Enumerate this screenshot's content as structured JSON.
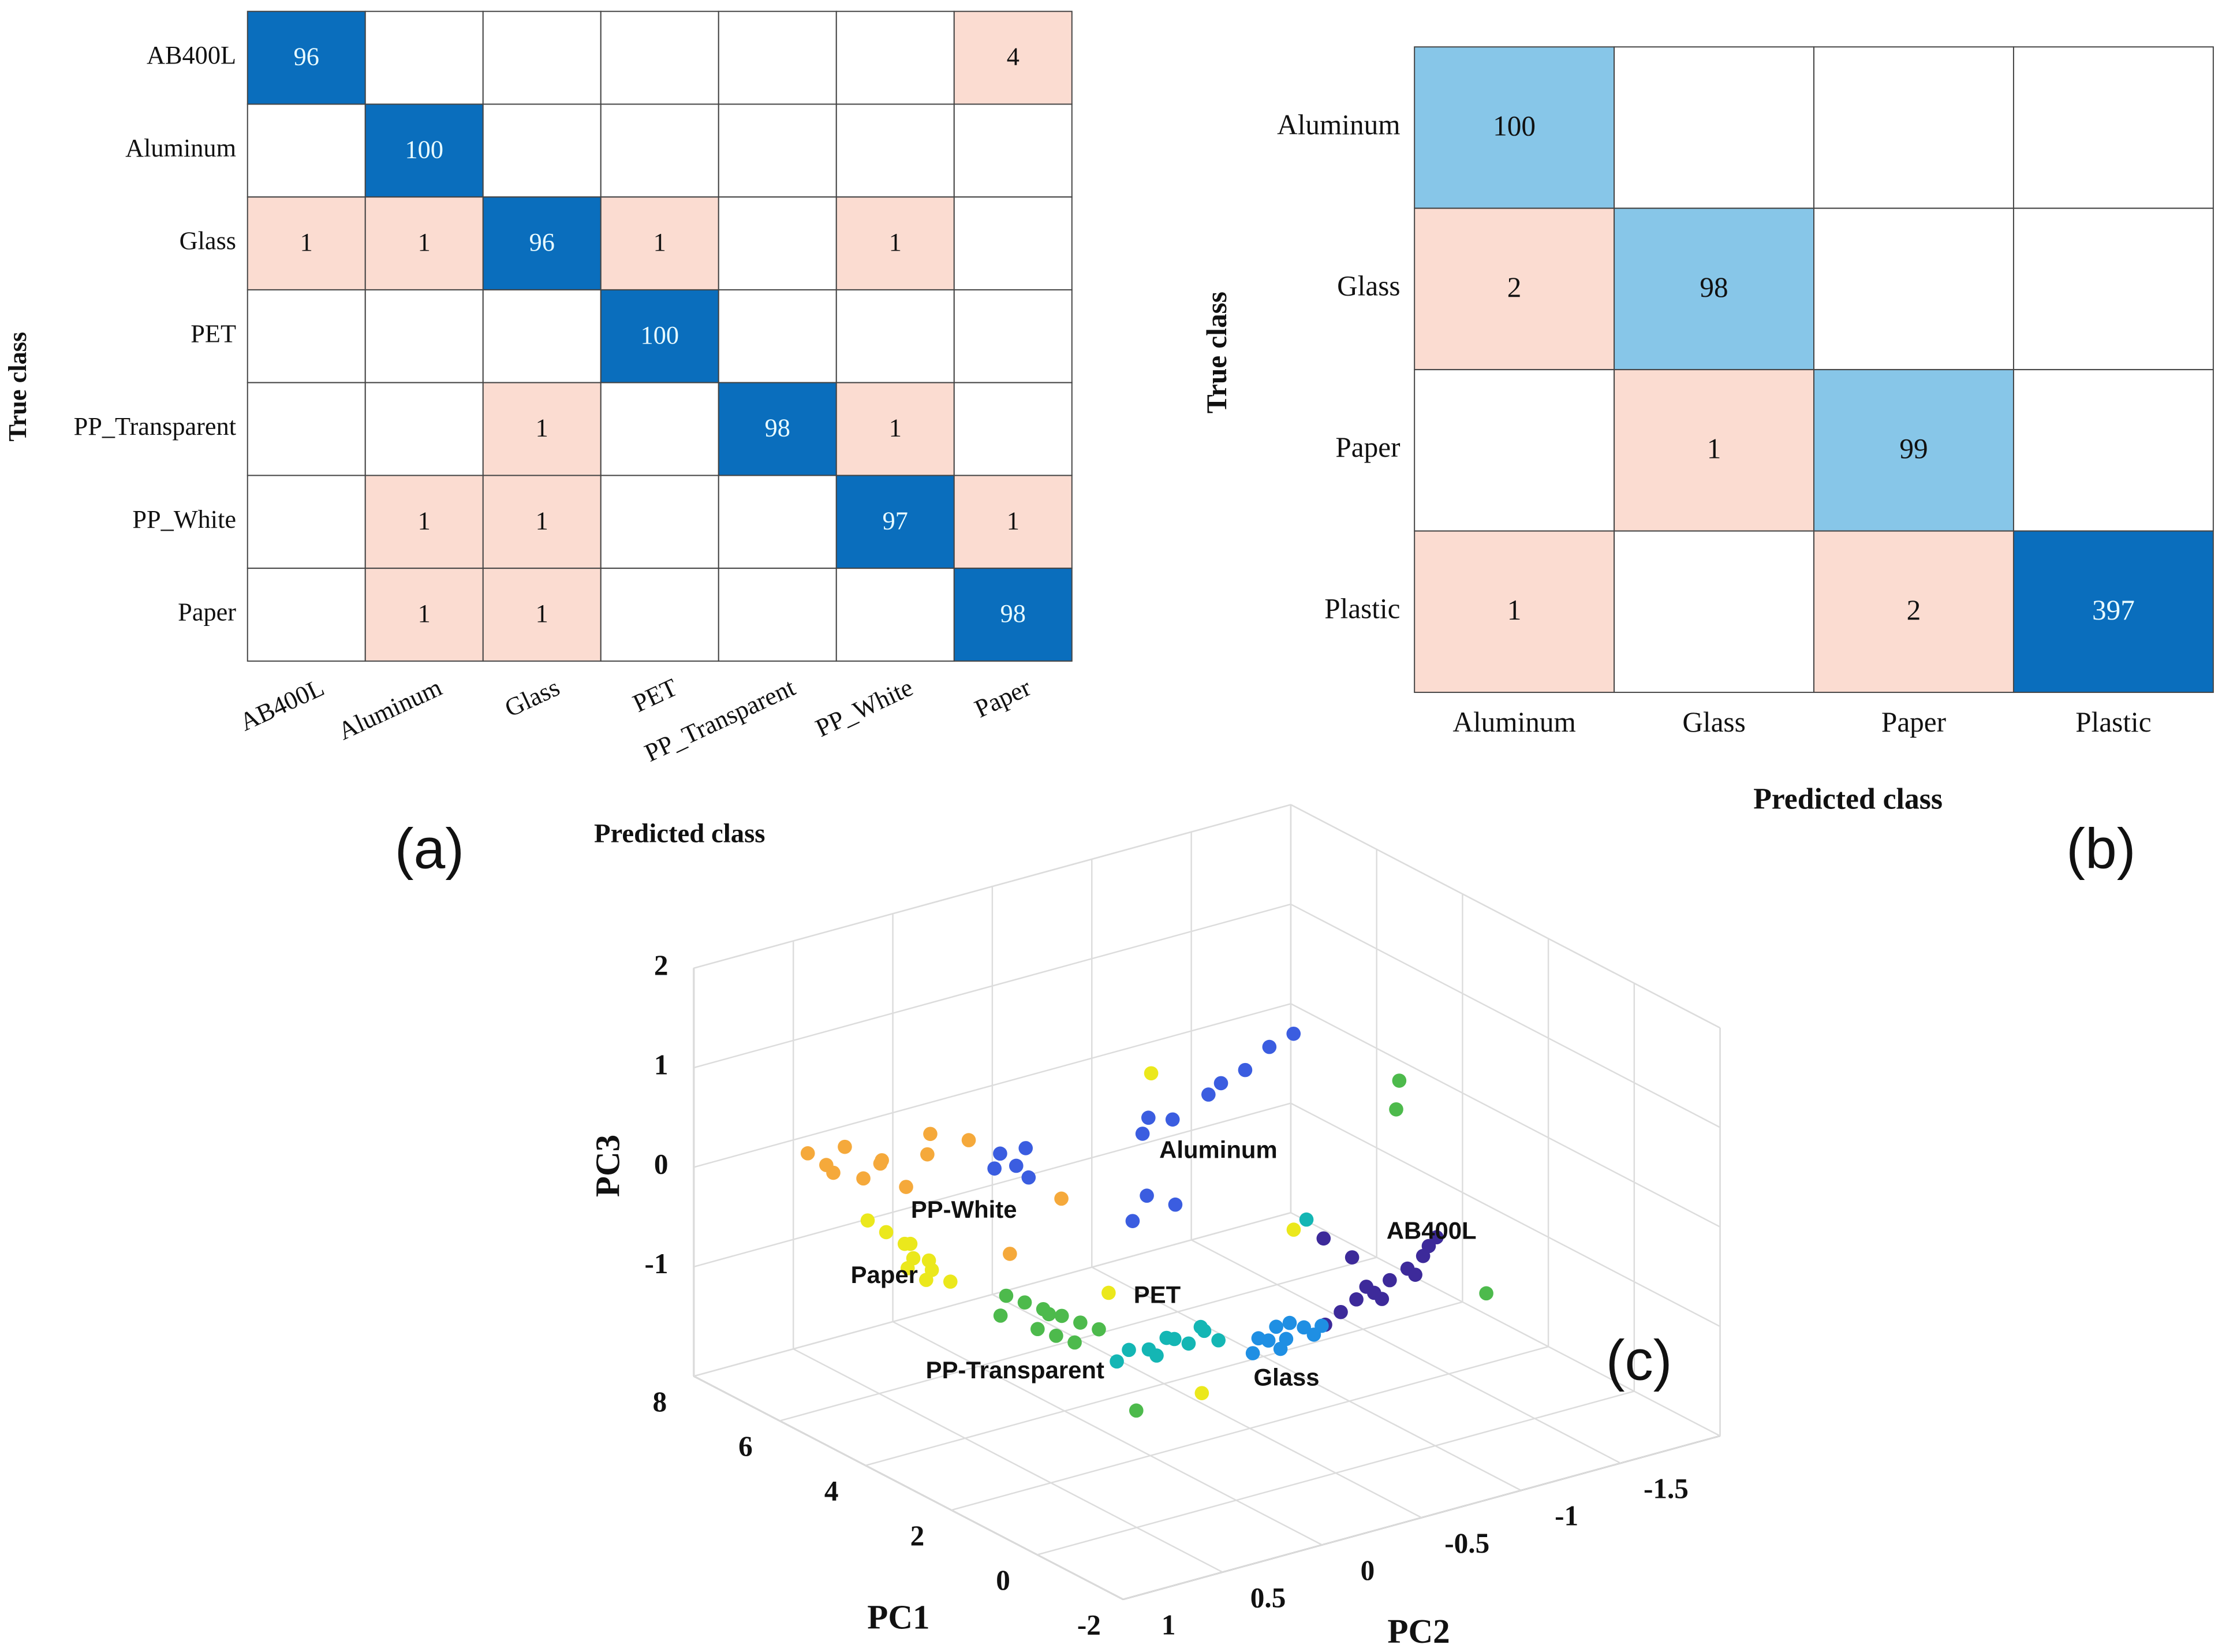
{
  "chart_data": [
    {
      "type": "heatmap",
      "categories": [
        "AB400L",
        "Aluminum",
        "Glass",
        "PET",
        "PP_Transparent",
        "PP_White",
        "Paper"
      ],
      "values": [
        [
          96,
          null,
          null,
          null,
          null,
          null,
          4
        ],
        [
          null,
          100,
          null,
          null,
          null,
          null,
          null
        ],
        [
          1,
          1,
          96,
          1,
          null,
          1,
          null
        ],
        [
          null,
          null,
          null,
          100,
          null,
          null,
          null
        ],
        [
          null,
          null,
          1,
          null,
          98,
          1,
          null
        ],
        [
          null,
          1,
          1,
          null,
          null,
          97,
          1
        ],
        [
          null,
          1,
          1,
          null,
          null,
          null,
          98
        ]
      ],
      "xlabel": "Predicted class",
      "ylabel": "True class",
      "panel_label": "(a)",
      "diagonal_colors": [
        "#0a6ebd",
        "#0a6ebd",
        "#0a6ebd",
        "#0a6ebd",
        "#0a6ebd",
        "#0a6ebd",
        "#0a6ebd"
      ],
      "off_diagonal_color": "#fbdcd1",
      "empty_color": "#ffffff"
    },
    {
      "type": "heatmap",
      "categories": [
        "Aluminum",
        "Glass",
        "Paper",
        "Plastic"
      ],
      "values": [
        [
          100,
          null,
          null,
          null
        ],
        [
          2,
          98,
          null,
          null
        ],
        [
          null,
          1,
          99,
          null
        ],
        [
          1,
          null,
          2,
          397
        ]
      ],
      "xlabel": "Predicted class",
      "ylabel": "True class",
      "panel_label": "(b)",
      "diagonal_colors": [
        "#87c6e8",
        "#87c6e8",
        "#87c6e8",
        "#0a6ebd"
      ],
      "off_diagonal_color": "#fbdcd1",
      "empty_color": "#ffffff"
    },
    {
      "type": "scatter3d",
      "xlabel": "PC1",
      "ylabel": "PC2",
      "zlabel": "PC3",
      "panel_label": "(c)",
      "xlim": [
        -2,
        8
      ],
      "xticks": [
        -2,
        0,
        2,
        4,
        6,
        8
      ],
      "ylim": [
        -2,
        1
      ],
      "yticks": [
        -1.5,
        -1,
        -0.5,
        0,
        0.5,
        1
      ],
      "zlim": [
        -2.1,
        2
      ],
      "zticks": [
        -1,
        0,
        1,
        2
      ],
      "grid": true,
      "series": [
        {
          "name": "AB400L",
          "color": "#3d2a9a",
          "values": [
            [
              2.1,
              -0.9,
              -1.3
            ],
            [
              2.2,
              -1.0,
              -1.25
            ],
            [
              2.3,
              -1.1,
              -1.2
            ],
            [
              2.35,
              -1.2,
              -1.2
            ],
            [
              2.45,
              -1.3,
              -1.15
            ],
            [
              2.5,
              -1.4,
              -1.1
            ],
            [
              2.6,
              -1.5,
              -1.05
            ],
            [
              2.7,
              -1.55,
              -1.0
            ],
            [
              2.4,
              -1.25,
              -1.3
            ],
            [
              2.55,
              -1.45,
              -1.2
            ],
            [
              2.75,
              -1.6,
              -0.95
            ],
            [
              2.3,
              -1.15,
              -1.1
            ],
            [
              2.4,
              -1.1,
              -0.8
            ],
            [
              2.6,
              -1.0,
              -0.6
            ]
          ]
        },
        {
          "name": "Glass",
          "color": "#1f8fe3",
          "values": [
            [
              1.7,
              -0.45,
              -1.25
            ],
            [
              1.8,
              -0.55,
              -1.2
            ],
            [
              1.85,
              -0.65,
              -1.25
            ],
            [
              1.9,
              -0.75,
              -1.2
            ],
            [
              1.95,
              -0.85,
              -1.25
            ],
            [
              1.75,
              -0.6,
              -1.3
            ],
            [
              2.0,
              -0.7,
              -1.15
            ],
            [
              1.8,
              -0.5,
              -1.15
            ],
            [
              1.9,
              -0.8,
              -1.3
            ],
            [
              1.85,
              -0.6,
              -1.1
            ]
          ]
        },
        {
          "name": "PET",
          "color": "#14b6b4",
          "values": [
            [
              2.5,
              0.0,
              -1.15
            ],
            [
              2.5,
              -0.1,
              -1.2
            ],
            [
              2.55,
              -0.2,
              -1.15
            ],
            [
              2.5,
              -0.3,
              -1.25
            ],
            [
              2.6,
              -0.4,
              -1.2
            ],
            [
              2.55,
              -0.15,
              -1.3
            ],
            [
              2.45,
              -0.35,
              -1.1
            ],
            [
              2.6,
              -0.25,
              -1.2
            ],
            [
              2.5,
              -0.45,
              -1.3
            ],
            [
              2.55,
              0.05,
              -1.25
            ],
            [
              3.0,
              -1.0,
              -0.5
            ]
          ]
        },
        {
          "name": "PP-Transparent",
          "color": "#4dba4c",
          "values": [
            [
              3.2,
              0.0,
              -1.1
            ],
            [
              3.4,
              0.05,
              -1.05
            ],
            [
              3.6,
              0.1,
              -1.0
            ],
            [
              3.8,
              0.15,
              -0.95
            ],
            [
              4.0,
              0.2,
              -0.9
            ],
            [
              4.2,
              0.25,
              -0.85
            ],
            [
              3.5,
              0.15,
              -1.15
            ],
            [
              3.9,
              0.1,
              -1.05
            ],
            [
              3.3,
              0.1,
              -1.2
            ],
            [
              4.1,
              0.3,
              -1.0
            ],
            [
              3.7,
              0.2,
              -1.1
            ],
            [
              0.85,
              -1.44,
              -1.0
            ],
            [
              1.95,
              -1.24,
              1.0
            ],
            [
              2.56,
              -0.05,
              -1.8
            ],
            [
              2.3,
              -1.3,
              0.6
            ]
          ]
        },
        {
          "name": "Paper",
          "color": "#ebe81c",
          "values": [
            [
              6.5,
              0.45,
              -0.5
            ],
            [
              6.3,
              0.4,
              -0.6
            ],
            [
              6.1,
              0.35,
              -0.7
            ],
            [
              5.9,
              0.35,
              -0.8
            ],
            [
              5.7,
              0.3,
              -0.9
            ],
            [
              5.5,
              0.25,
              -1.0
            ],
            [
              6.2,
              0.3,
              -0.75
            ],
            [
              5.8,
              0.4,
              -0.85
            ],
            [
              6.0,
              0.25,
              -0.9
            ],
            [
              5.6,
              0.35,
              -0.95
            ],
            [
              4.16,
              -0.47,
              1.0
            ],
            [
              1.96,
              -0.25,
              -1.6
            ],
            [
              3.39,
              -1.02,
              -0.7
            ],
            [
              3.9,
              -0.2,
              -1.0
            ]
          ]
        },
        {
          "name": "PP-White",
          "color": "#f5a93b",
          "values": [
            [
              7.2,
              0.6,
              0.1
            ],
            [
              7.0,
              0.55,
              0.0
            ],
            [
              6.8,
              0.5,
              0.2
            ],
            [
              6.6,
              0.45,
              -0.1
            ],
            [
              6.4,
              0.4,
              0.1
            ],
            [
              6.2,
              0.2,
              0.3
            ],
            [
              6.0,
              0.05,
              0.2
            ],
            [
              6.9,
              0.3,
              -0.1
            ],
            [
              6.5,
              0.15,
              0.0
            ],
            [
              7.3,
              0.45,
              -0.2
            ],
            [
              6.3,
              0.3,
              -0.2
            ],
            [
              4.67,
              0.13,
              -0.6
            ],
            [
              5.0,
              -0.2,
              -0.3
            ]
          ]
        },
        {
          "name": "Aluminum",
          "color": "#3b5de0",
          "values": [
            [
              5.45,
              -0.07,
              0.0
            ],
            [
              5.5,
              0.0,
              0.15
            ],
            [
              5.3,
              -0.1,
              -0.1
            ],
            [
              5.6,
              -0.15,
              0.1
            ],
            [
              5.4,
              0.05,
              0.05
            ],
            [
              3.66,
              -0.65,
              0.8
            ],
            [
              3.5,
              -0.8,
              1.0
            ],
            [
              3.4,
              -0.9,
              1.2
            ],
            [
              3.8,
              -0.5,
              0.6
            ],
            [
              3.9,
              -0.4,
              0.65
            ],
            [
              3.3,
              -1.0,
              1.3
            ],
            [
              3.6,
              -0.7,
              0.9
            ],
            [
              4.5,
              -0.5,
              0.3
            ],
            [
              4.4,
              -0.5,
              -0.3
            ],
            [
              4.2,
              -0.6,
              -0.4
            ],
            [
              4.5,
              -0.45,
              -0.55
            ]
          ]
        }
      ]
    }
  ]
}
